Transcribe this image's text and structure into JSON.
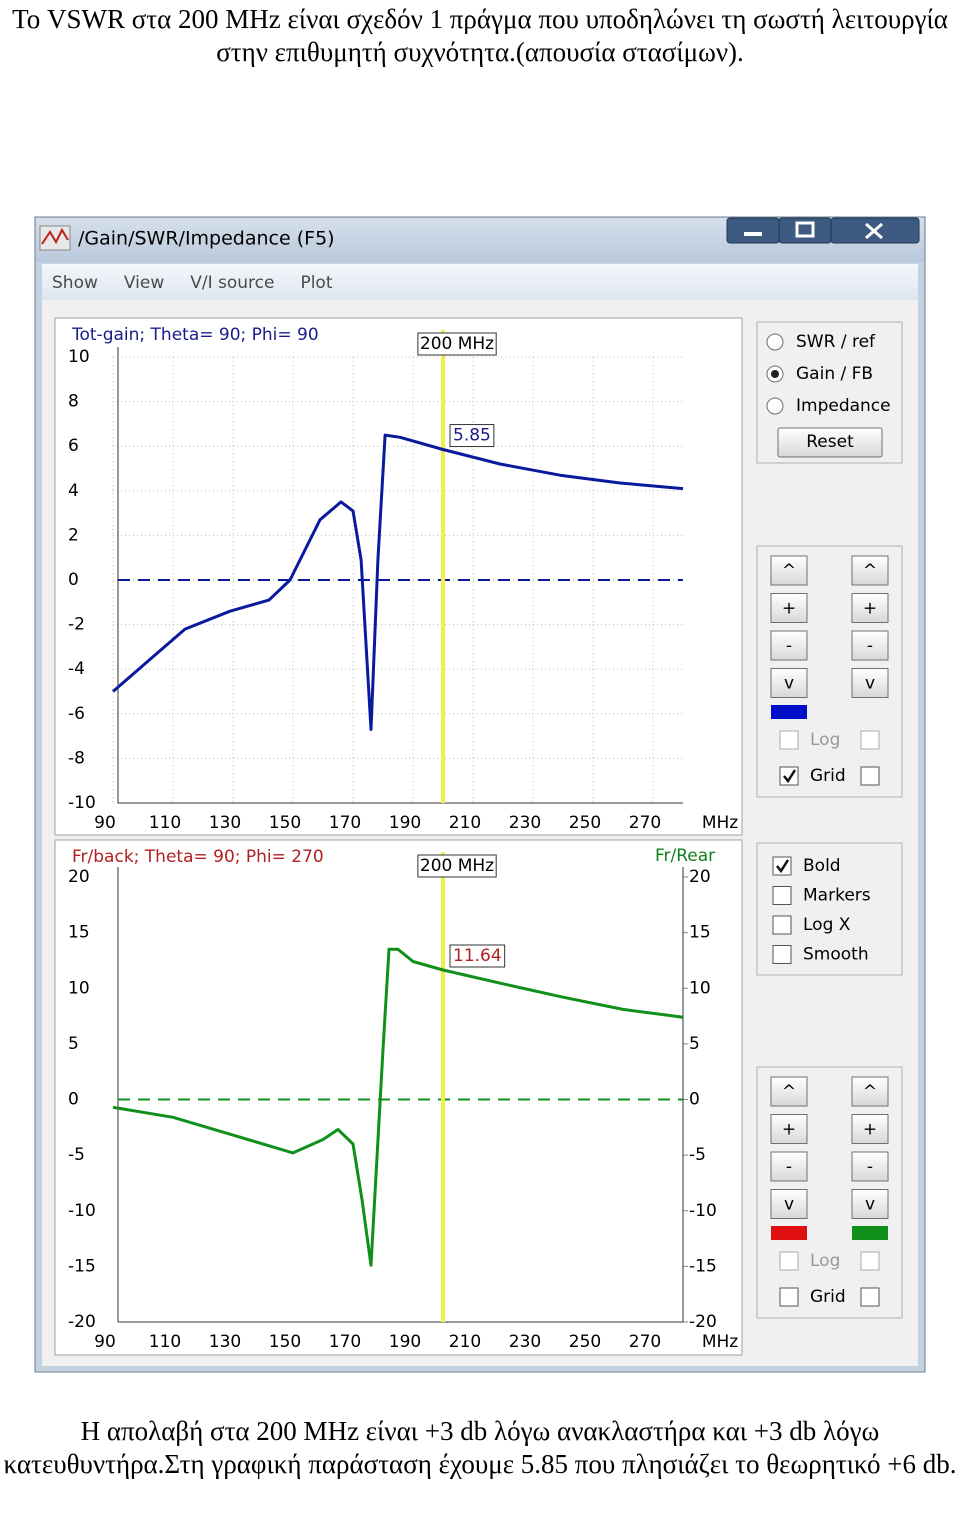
{
  "intro": "Το VSWR στα 200 MHz είναι σχεδόν 1 πράγμα που υποδηλώνει τη σωστή λειτουργία στην επιθυμητή συχνότητα.(απουσία στασίμων).",
  "window": {
    "title": "/Gain/SWR/Impedance (F5)",
    "menu": [
      "Show",
      "View",
      "V/I source",
      "Plot"
    ],
    "modes": [
      {
        "label": "SWR / ref",
        "selected": false
      },
      {
        "label": "Gain / FB",
        "selected": true
      },
      {
        "label": "Impedance",
        "selected": false
      }
    ],
    "reset": "Reset",
    "buttons": [
      "^",
      "+",
      "-",
      "v"
    ],
    "upper_controls": {
      "colors": [
        "#0010c8"
      ],
      "checks": [
        {
          "label": "Log",
          "checked": [
            false,
            false
          ],
          "enabled": false
        },
        {
          "label": "Grid",
          "checked": [
            true,
            false
          ],
          "enabled": true
        }
      ]
    },
    "options": [
      {
        "label": "Bold",
        "checked": true
      },
      {
        "label": "Markers",
        "checked": false
      },
      {
        "label": "Log X",
        "checked": false
      },
      {
        "label": "Smooth",
        "checked": false
      }
    ],
    "lower_controls": {
      "colors": [
        "#e01010",
        "#10901a"
      ],
      "checks": [
        {
          "label": "Log",
          "checked": [
            false,
            false
          ],
          "enabled": false
        },
        {
          "label": "Grid",
          "checked": [
            false,
            false
          ],
          "enabled": true
        }
      ]
    }
  },
  "charts": [
    {
      "type": "line",
      "title": "Tot-gain; Theta= 90; Phi= 90",
      "title_color": "#1a1a8c",
      "marker_label": "200 MHz",
      "marker_x": 200,
      "marker_value": 5.85,
      "marker_value_color": "#1a1a8c",
      "x_label": "MHz",
      "x": [
        90,
        102,
        114,
        129,
        142,
        149,
        159,
        166,
        170,
        172.7,
        176,
        178.3,
        180.7,
        185.7,
        200,
        219,
        239,
        259,
        280
      ],
      "series": [
        {
          "color": "#0a1a9c",
          "values": [
            -5.0,
            -3.6,
            -2.2,
            -1.4,
            -0.9,
            0,
            2.7,
            3.5,
            3.1,
            0.9,
            -6.7,
            0.9,
            6.5,
            6.4,
            5.85,
            5.2,
            4.7,
            4.35,
            4.1
          ]
        }
      ],
      "xlim": [
        90,
        280
      ],
      "ylim": [
        -10,
        10
      ],
      "xticks": [
        90,
        110,
        130,
        150,
        170,
        190,
        210,
        230,
        250,
        270
      ],
      "yticks": [
        10,
        8,
        6,
        4,
        2,
        0,
        -2,
        -4,
        -6,
        -8,
        -10
      ],
      "grid": true,
      "zero_line": true
    },
    {
      "type": "line",
      "title": "Fr/back; Theta= 90; Phi= 270",
      "title_color": "#b02020",
      "y2_label": "Fr/Rear",
      "y2_label_color": "#10801a",
      "marker_label": "200 MHz",
      "marker_x": 200,
      "marker_value": 11.64,
      "marker_value_color": "#b02020",
      "x_label": "MHz",
      "x": [
        90,
        110,
        130,
        150,
        160,
        165,
        170,
        173,
        176,
        180,
        182,
        185,
        190,
        200,
        220,
        240,
        260,
        280
      ],
      "series": [
        {
          "color": "#10901a",
          "values": [
            -0.7,
            -1.6,
            -3.2,
            -4.8,
            -3.6,
            -2.7,
            -4.0,
            -9.0,
            -14.9,
            4.5,
            13.5,
            13.5,
            12.4,
            11.64,
            10.4,
            9.2,
            8.1,
            7.4
          ]
        }
      ],
      "xlim": [
        90,
        280
      ],
      "ylim": [
        -20,
        20
      ],
      "y2lim": [
        -20,
        20
      ],
      "xticks": [
        90,
        110,
        130,
        150,
        170,
        190,
        210,
        230,
        250,
        270
      ],
      "yticks": [
        20,
        15,
        10,
        5,
        0,
        -5,
        -10,
        -15,
        -20
      ],
      "y2ticks": [
        20,
        15,
        10,
        5,
        0,
        -5,
        -10,
        -15,
        -20
      ],
      "grid": false,
      "zero_line": true
    }
  ],
  "conclusion": "Η απολαβή στα 200 MHz είναι +3 db λόγω ανακλαστήρα και +3 db λόγω κατευθυντήρα.Στη γραφική παράσταση έχουμε 5.85 που πλησιάζει το θεωρητικό +6 db."
}
